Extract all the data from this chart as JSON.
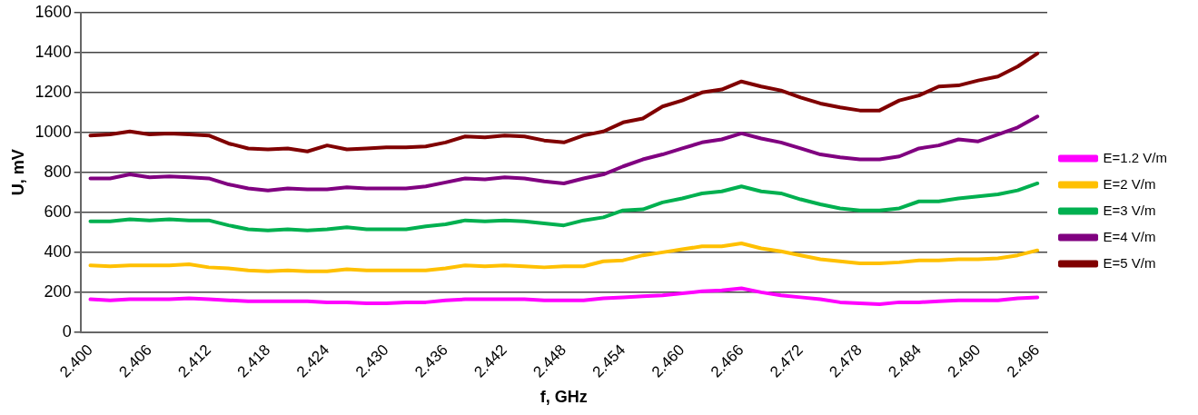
{
  "chart_data": {
    "type": "line",
    "xlabel": "f, GHz",
    "ylabel": "U, mV",
    "categories": [
      "2.400",
      null,
      null,
      "2.406",
      null,
      null,
      "2.412",
      null,
      null,
      "2.418",
      null,
      null,
      "2.424",
      null,
      null,
      "2.430",
      null,
      null,
      "2.436",
      null,
      null,
      "2.442",
      null,
      null,
      "2.448",
      null,
      null,
      "2.454",
      null,
      null,
      "2.460",
      null,
      null,
      "2.466",
      null,
      null,
      "2.472",
      null,
      null,
      "2.478",
      null,
      null,
      "2.484",
      null,
      null,
      "2.490",
      null,
      null,
      "2.496"
    ],
    "ylim": [
      0,
      1600
    ],
    "yticks": [
      0,
      200,
      400,
      600,
      800,
      1000,
      1200,
      1400,
      1600
    ],
    "grid": "y",
    "legend": "right",
    "marker": "none",
    "line_style": "solid",
    "series": [
      {
        "name": "E=1.2 V/m",
        "color": "#ff00ff",
        "values": [
          165,
          160,
          165,
          165,
          165,
          170,
          165,
          160,
          155,
          155,
          155,
          155,
          150,
          150,
          145,
          145,
          150,
          150,
          160,
          165,
          165,
          165,
          165,
          160,
          160,
          160,
          170,
          175,
          180,
          185,
          195,
          205,
          210,
          220,
          200,
          185,
          175,
          165,
          150,
          145,
          140,
          150,
          150,
          155,
          160,
          160,
          160,
          170,
          175
        ]
      },
      {
        "name": "E=2 V/m",
        "color": "#ffc000",
        "values": [
          335,
          330,
          335,
          335,
          335,
          340,
          325,
          320,
          310,
          305,
          310,
          305,
          305,
          315,
          310,
          310,
          310,
          310,
          320,
          335,
          330,
          335,
          330,
          325,
          330,
          330,
          355,
          360,
          385,
          400,
          415,
          430,
          430,
          445,
          420,
          405,
          385,
          365,
          355,
          345,
          345,
          350,
          360,
          360,
          365,
          365,
          370,
          385,
          410
        ]
      },
      {
        "name": "E=3 V/m",
        "color": "#00b050",
        "values": [
          555,
          555,
          565,
          560,
          565,
          560,
          560,
          535,
          515,
          510,
          515,
          510,
          515,
          525,
          515,
          515,
          515,
          530,
          540,
          560,
          555,
          560,
          555,
          545,
          535,
          560,
          575,
          610,
          615,
          650,
          670,
          695,
          705,
          730,
          705,
          695,
          665,
          640,
          620,
          610,
          610,
          620,
          655,
          655,
          670,
          680,
          690,
          710,
          745
        ]
      },
      {
        "name": "E=4 V/m",
        "color": "#800080",
        "values": [
          770,
          770,
          790,
          775,
          780,
          775,
          770,
          740,
          720,
          710,
          720,
          715,
          715,
          725,
          720,
          720,
          720,
          730,
          750,
          770,
          765,
          775,
          770,
          755,
          745,
          770,
          790,
          830,
          865,
          890,
          920,
          950,
          965,
          995,
          970,
          950,
          920,
          890,
          875,
          865,
          865,
          880,
          920,
          935,
          965,
          955,
          990,
          1025,
          1080
        ]
      },
      {
        "name": "E=5 V/m",
        "color": "#800000",
        "values": [
          985,
          990,
          1005,
          990,
          995,
          990,
          985,
          945,
          920,
          915,
          920,
          905,
          935,
          915,
          920,
          925,
          925,
          930,
          950,
          980,
          975,
          985,
          980,
          960,
          950,
          985,
          1005,
          1050,
          1070,
          1130,
          1160,
          1200,
          1215,
          1255,
          1230,
          1210,
          1175,
          1145,
          1125,
          1110,
          1110,
          1160,
          1185,
          1230,
          1235,
          1260,
          1280,
          1330,
          1395
        ]
      }
    ]
  }
}
